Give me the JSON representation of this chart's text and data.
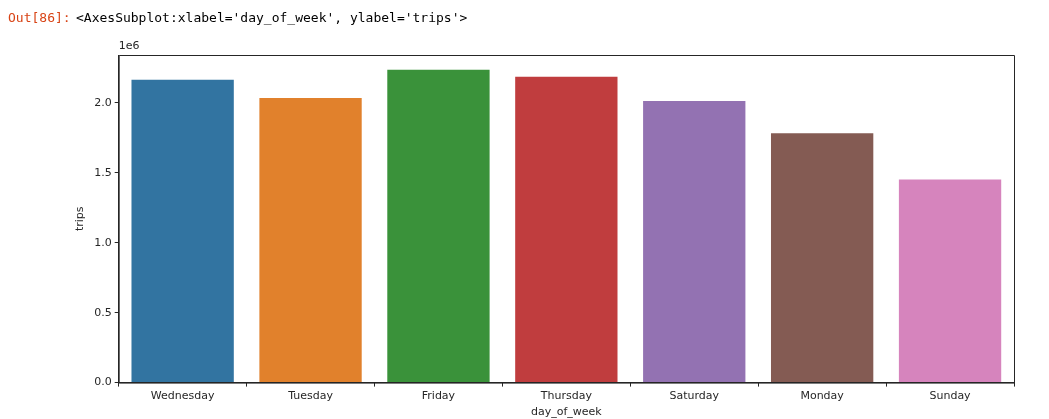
{
  "chart_data": {
    "type": "bar",
    "xlabel": "day_of_week",
    "ylabel": "trips",
    "annotations": [
      "Out[86]:",
      "<AxesSubplot:xlabel='day_of_week', ylabel='trips'>",
      "1e6"
    ],
    "categories": [
      "Wednesday",
      "Tuesday",
      "Friday",
      "Thursday",
      "Saturday",
      "Monday",
      "Sunday"
    ],
    "values": [
      2.166,
      2.036,
      2.237,
      2.187,
      2.014,
      1.784,
      1.453
    ],
    "colors": [
      "#3274a1",
      "#e1812c",
      "#3a923a",
      "#c03d3e",
      "#9372b2",
      "#845b53",
      "#d684bd"
    ],
    "ylim": [
      0,
      2.343
    ],
    "yticks": [
      {
        "value": 0,
        "label": "0.0"
      },
      {
        "value": 0.5,
        "label": "0.5"
      },
      {
        "value": 1,
        "label": "1.0"
      },
      {
        "value": 1.5,
        "label": "1.5"
      },
      {
        "value": 2,
        "label": "2.0"
      }
    ],
    "grid": false,
    "legend": false
  }
}
